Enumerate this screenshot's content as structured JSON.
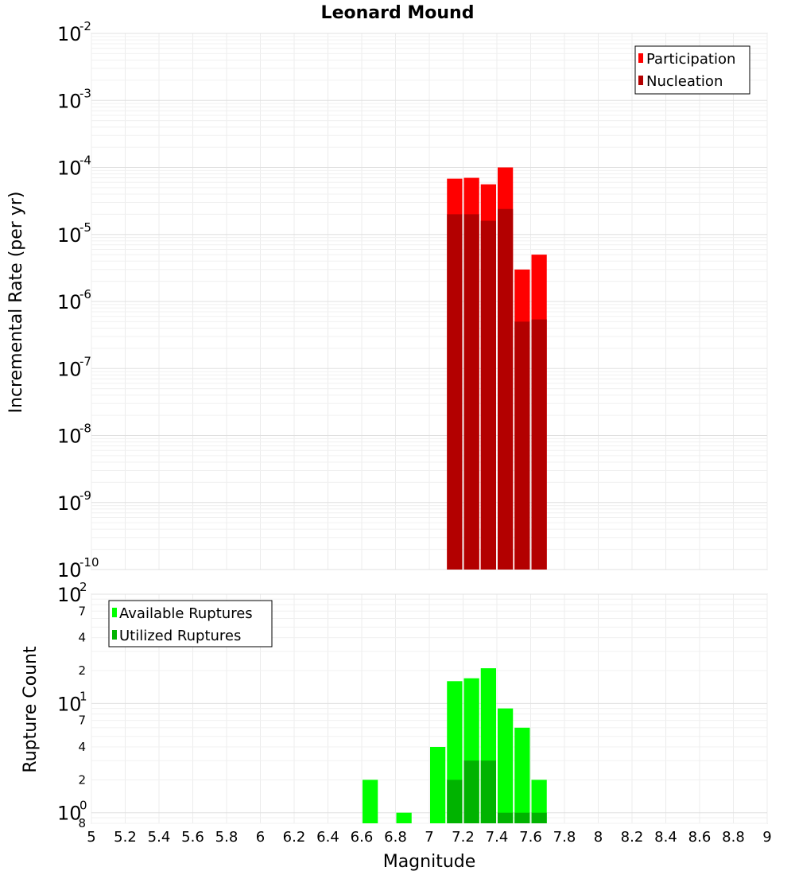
{
  "chart_data": [
    {
      "type": "bar",
      "title": "Leonard Mound",
      "xlabel": "",
      "ylabel": "Incremental Rate (per yr)",
      "yscale": "log",
      "ylim": [
        1e-10,
        0.01
      ],
      "xlim": [
        5,
        9
      ],
      "bar_width": 0.1,
      "grid": true,
      "legend_placement": "top-right",
      "y_major_ticks": [
        {
          "value": 1e-10,
          "base": "10",
          "exp": "-10"
        },
        {
          "value": 1e-09,
          "base": "10",
          "exp": "-9"
        },
        {
          "value": 1e-08,
          "base": "10",
          "exp": "-8"
        },
        {
          "value": 1e-07,
          "base": "10",
          "exp": "-7"
        },
        {
          "value": 1e-06,
          "base": "10",
          "exp": "-6"
        },
        {
          "value": 1e-05,
          "base": "10",
          "exp": "-5"
        },
        {
          "value": 0.0001,
          "base": "10",
          "exp": "-4"
        },
        {
          "value": 0.001,
          "base": "10",
          "exp": "-3"
        },
        {
          "value": 0.01,
          "base": "10",
          "exp": "-2"
        }
      ],
      "series": [
        {
          "name": "Participation",
          "color": "#ff0000",
          "x": [
            7.15,
            7.25,
            7.35,
            7.45,
            7.55,
            7.65
          ],
          "values": [
            6.8e-05,
            7e-05,
            5.6e-05,
            0.0001,
            3e-06,
            5e-06
          ]
        },
        {
          "name": "Nucleation",
          "color": "#b30000",
          "x": [
            7.15,
            7.25,
            7.35,
            7.45,
            7.55,
            7.65
          ],
          "values": [
            2e-05,
            2e-05,
            1.6e-05,
            2.4e-05,
            5e-07,
            5.4e-07
          ]
        }
      ]
    },
    {
      "type": "bar",
      "title": "",
      "xlabel": "Magnitude",
      "ylabel": "Rupture Count",
      "yscale": "log",
      "ylim": [
        0.8,
        100
      ],
      "xlim": [
        5,
        9
      ],
      "bar_width": 0.1,
      "grid": true,
      "legend_placement": "top-left",
      "x_ticks": [
        "5",
        "5.2",
        "5.4",
        "5.6",
        "5.8",
        "6",
        "6.2",
        "6.4",
        "6.6",
        "6.8",
        "7",
        "7.2",
        "7.4",
        "7.6",
        "7.8",
        "8",
        "8.2",
        "8.4",
        "8.6",
        "8.8",
        "9"
      ],
      "y_major_ticks": [
        {
          "value": 1,
          "base": "10",
          "exp": "0"
        },
        {
          "value": 10,
          "base": "10",
          "exp": "1"
        },
        {
          "value": 100,
          "base": "10",
          "exp": "2"
        }
      ],
      "y_minor_ticks": [
        {
          "value": 0.8,
          "label": "8"
        },
        {
          "value": 2,
          "label": "2"
        },
        {
          "value": 4,
          "label": "4"
        },
        {
          "value": 7,
          "label": "7"
        },
        {
          "value": 20,
          "label": "2"
        },
        {
          "value": 40,
          "label": "4"
        },
        {
          "value": 70,
          "label": "7"
        }
      ],
      "series": [
        {
          "name": "Available Ruptures",
          "color": "#00ff00",
          "x": [
            6.65,
            6.85,
            7.05,
            7.15,
            7.25,
            7.35,
            7.45,
            7.55,
            7.65
          ],
          "values": [
            2,
            1,
            4,
            16,
            17,
            21,
            9,
            6,
            2
          ]
        },
        {
          "name": "Utilized Ruptures",
          "color": "#00b300",
          "x": [
            7.15,
            7.25,
            7.35,
            7.45,
            7.55,
            7.65
          ],
          "values": [
            2,
            3,
            3,
            1,
            1,
            1
          ]
        }
      ]
    }
  ]
}
